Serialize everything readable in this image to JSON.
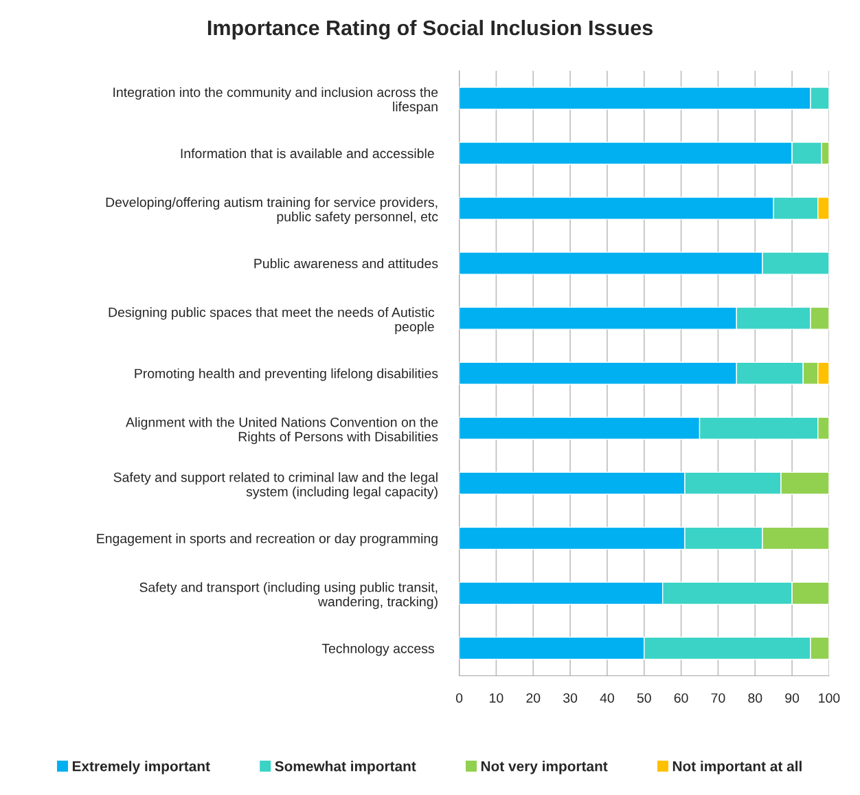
{
  "chart_data": {
    "type": "bar",
    "orientation": "horizontal",
    "stacked": true,
    "title": "Importance Rating of Social Inclusion Issues",
    "categories": [
      "Integration into the community and inclusion across the\nlifespan",
      "Information that is available and accessible ",
      "Developing/offering autism training for service providers,\npublic safety personnel, etc",
      "Public awareness and attitudes",
      "Designing public spaces that meet the needs of Autistic \npeople ",
      "Promoting health and preventing lifelong disabilities",
      "Alignment with the United Nations Convention on the\nRights of Persons with Disabilities",
      "Safety and support related to criminal law and the legal\nsystem (including legal capacity)",
      "Engagement in sports and recreation or day programming",
      "Safety and transport (including using public transit,\nwandering, tracking)",
      "Technology access "
    ],
    "series": [
      {
        "name": "Extremely important",
        "color": "#00b0f0",
        "values": [
          95,
          90,
          85,
          82,
          75,
          75,
          65,
          61,
          61,
          55,
          50
        ]
      },
      {
        "name": "Somewhat important",
        "color": "#3bd3c6",
        "values": [
          5,
          8,
          12,
          18,
          20,
          18,
          32,
          26,
          21,
          35,
          45
        ]
      },
      {
        "name": "Not very important",
        "color": "#92d050",
        "values": [
          null,
          2,
          null,
          null,
          5,
          4,
          3,
          13,
          18,
          10,
          5
        ]
      },
      {
        "name": "Not important at all",
        "color": "#ffc000",
        "values": [
          null,
          null,
          3,
          null,
          null,
          3,
          null,
          null,
          null,
          null,
          null
        ]
      }
    ],
    "xlim": [
      0,
      100
    ],
    "xticks": [
      0,
      10,
      20,
      30,
      40,
      50,
      60,
      70,
      80,
      90,
      100
    ],
    "grid": "x",
    "legend": "bottom"
  }
}
